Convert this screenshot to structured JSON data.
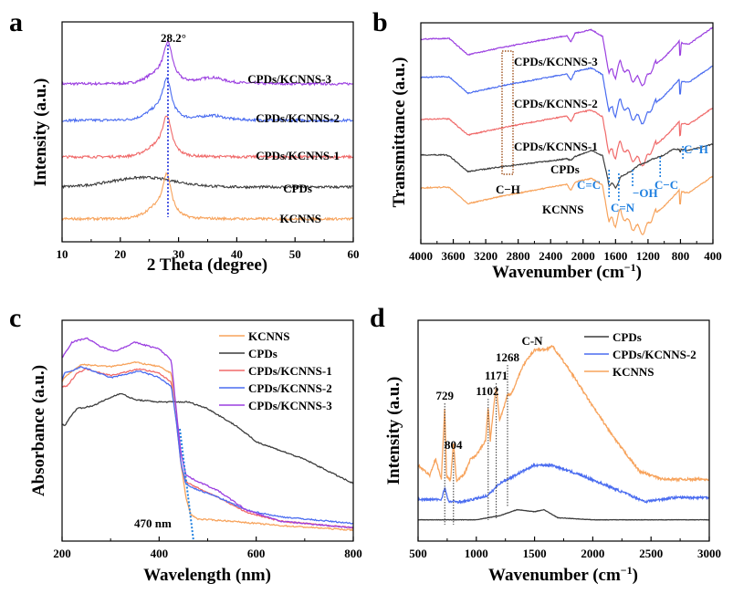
{
  "figure": {
    "colors": {
      "KCNNS": "#f7a35c",
      "CPDs": "#3c3c3c",
      "CPDs/KCNNS-1": "#f06a6a",
      "CPDs/KCNNS-2": "#4a6cf0",
      "CPDs/KCNNS-3": "#9b3fe0",
      "annotation_blue": "#1e7fe0",
      "box_brown": "#a0521e"
    }
  },
  "chart_data": [
    {
      "panel": "a",
      "type": "line",
      "title": "",
      "xlabel": "2 Theta (degree)",
      "ylabel": "Intensity (a.u.)",
      "xlim": [
        10,
        60
      ],
      "xticks": [
        10,
        20,
        30,
        40,
        50,
        60
      ],
      "yticks": [],
      "grid": false,
      "legend": "inline labels",
      "annotations": [
        {
          "text": "28.2°",
          "x": 28.2,
          "type": "vertical-dotted-line"
        }
      ],
      "series": [
        {
          "name": "CPDs/KCNNS-3",
          "label": "CPDs/KCNNS-3",
          "offset": 4,
          "peaks": [
            {
              "x": 28.2,
              "h": 0.55
            },
            {
              "x": 36,
              "h": 0.08
            }
          ],
          "broad": null
        },
        {
          "name": "CPDs/KCNNS-2",
          "label": "CPDs/KCNNS-2",
          "offset": 3,
          "peaks": [
            {
              "x": 28.0,
              "h": 0.55
            },
            {
              "x": 36,
              "h": 0.06
            }
          ],
          "broad": null
        },
        {
          "name": "CPDs/KCNNS-1",
          "label": "CPDs/KCNNS-1",
          "offset": 2,
          "peaks": [
            {
              "x": 28.0,
              "h": 0.55
            }
          ],
          "broad": null
        },
        {
          "name": "CPDs",
          "label": "CPDs",
          "offset": 1,
          "peaks": [],
          "broad": {
            "x": 24,
            "h": 0.15
          }
        },
        {
          "name": "KCNNS",
          "label": "KCNNS",
          "offset": 0,
          "peaks": [
            {
              "x": 28.0,
              "h": 0.6
            }
          ],
          "broad": null
        }
      ]
    },
    {
      "panel": "b",
      "type": "line",
      "title": "",
      "xlabel": "Wavenumber (cm⁻¹)",
      "ylabel": "Transmittance (a.u.)",
      "xlim": [
        4000,
        400
      ],
      "xticks": [
        4000,
        3600,
        3200,
        2800,
        2400,
        2000,
        1600,
        1200,
        800,
        400
      ],
      "yticks": [],
      "grid": false,
      "legend": "inline labels",
      "annotations": [
        {
          "text": "C–H",
          "x": 2930,
          "style": "black",
          "box": [
            3000,
            2870
          ]
        },
        {
          "text": "C=C",
          "x": 1680,
          "style": "blue"
        },
        {
          "text": "C=N",
          "x": 1560,
          "style": "blue"
        },
        {
          "text": "–OH",
          "x": 1390,
          "style": "blue"
        },
        {
          "text": "C–C",
          "x": 1050,
          "style": "blue"
        },
        {
          "text": "C–H",
          "x": 770,
          "style": "blue"
        }
      ],
      "series": [
        {
          "name": "CPDs/KCNNS-3",
          "label": "CPDs/KCNNS-3",
          "offset": 4
        },
        {
          "name": "CPDs/KCNNS-2",
          "label": "CPDs/KCNNS-2",
          "offset": 3
        },
        {
          "name": "CPDs/KCNNS-1",
          "label": "CPDs/KCNNS-1",
          "offset": 2
        },
        {
          "name": "CPDs",
          "label": "CPDs",
          "offset": 1
        },
        {
          "name": "KCNNS",
          "label": "KCNNS",
          "offset": 0
        }
      ]
    },
    {
      "panel": "c",
      "type": "line",
      "title": "",
      "xlabel": "Wavelength (nm)",
      "ylabel": "Absorbance (a.u.)",
      "xlim": [
        200,
        800
      ],
      "ylim": [
        0,
        1
      ],
      "xticks": [
        200,
        400,
        600,
        800
      ],
      "yticks": [],
      "grid": false,
      "legend": "top-right",
      "annotations": [
        {
          "text": "470 nm",
          "x": 470,
          "type": "tangent-dotted-line"
        }
      ],
      "series": [
        {
          "name": "KCNNS",
          "x": [
            200,
            205,
            215,
            240,
            300,
            350,
            400,
            425,
            435,
            445,
            455,
            465,
            480,
            550,
            650,
            800
          ],
          "y": [
            0.72,
            0.74,
            0.76,
            0.8,
            0.79,
            0.81,
            0.79,
            0.76,
            0.6,
            0.35,
            0.2,
            0.12,
            0.1,
            0.09,
            0.07,
            0.05
          ]
        },
        {
          "name": "CPDs",
          "x": [
            200,
            205,
            210,
            230,
            260,
            300,
            320,
            350,
            400,
            460,
            500,
            560,
            600,
            700,
            800
          ],
          "y": [
            0.53,
            0.52,
            0.54,
            0.6,
            0.61,
            0.65,
            0.67,
            0.64,
            0.63,
            0.63,
            0.6,
            0.52,
            0.45,
            0.37,
            0.26
          ]
        },
        {
          "name": "CPDs/KCNNS-1",
          "x": [
            200,
            210,
            230,
            250,
            300,
            360,
            400,
            425,
            435,
            445,
            455,
            470,
            520,
            580,
            650,
            800
          ],
          "y": [
            0.7,
            0.7,
            0.76,
            0.78,
            0.75,
            0.78,
            0.76,
            0.72,
            0.55,
            0.35,
            0.27,
            0.25,
            0.2,
            0.13,
            0.09,
            0.06
          ]
        },
        {
          "name": "CPDs/KCNNS-2",
          "x": [
            200,
            205,
            220,
            240,
            300,
            360,
            400,
            425,
            435,
            445,
            455,
            470,
            520,
            580,
            650,
            800
          ],
          "y": [
            0.73,
            0.76,
            0.77,
            0.79,
            0.74,
            0.77,
            0.74,
            0.7,
            0.55,
            0.35,
            0.26,
            0.24,
            0.2,
            0.14,
            0.11,
            0.08
          ]
        },
        {
          "name": "CPDs/KCNNS-3",
          "x": [
            200,
            220,
            250,
            280,
            310,
            350,
            400,
            425,
            435,
            445,
            455,
            470,
            520,
            580,
            650,
            800
          ],
          "y": [
            0.83,
            0.9,
            0.92,
            0.88,
            0.86,
            0.9,
            0.87,
            0.82,
            0.6,
            0.4,
            0.3,
            0.28,
            0.23,
            0.14,
            0.09,
            0.06
          ]
        }
      ]
    },
    {
      "panel": "d",
      "type": "line",
      "title": "",
      "xlabel": "Wavenumber (cm⁻¹)",
      "ylabel": "Intensity (a.u.)",
      "xlim": [
        500,
        3000
      ],
      "ylim": [
        0,
        1
      ],
      "xticks": [
        500,
        1000,
        1500,
        2000,
        2500,
        3000
      ],
      "yticks": [],
      "grid": false,
      "legend": "top-right",
      "annotations": [
        {
          "text": "729",
          "x": 729
        },
        {
          "text": "804",
          "x": 804
        },
        {
          "text": "1102",
          "x": 1102
        },
        {
          "text": "1171",
          "x": 1171
        },
        {
          "text": "1268",
          "x": 1268
        },
        {
          "text": "C-N",
          "x": 1560
        }
      ],
      "series": [
        {
          "name": "CPDs",
          "x": [
            500,
            1000,
            1200,
            1350,
            1500,
            1580,
            1700,
            2000,
            3000
          ],
          "y": [
            0.06,
            0.06,
            0.08,
            0.11,
            0.1,
            0.11,
            0.07,
            0.06,
            0.06
          ]
        },
        {
          "name": "CPDs/KCNNS-2",
          "x": [
            500,
            700,
            729,
            760,
            900,
            1100,
            1200,
            1400,
            1500,
            1650,
            1900,
            2200,
            2450,
            2700,
            3000
          ],
          "y": [
            0.16,
            0.16,
            0.22,
            0.15,
            0.15,
            0.18,
            0.24,
            0.3,
            0.33,
            0.33,
            0.28,
            0.21,
            0.15,
            0.17,
            0.17
          ]
        },
        {
          "name": "KCNNS",
          "x": [
            500,
            600,
            650,
            700,
            729,
            745,
            780,
            804,
            830,
            900,
            950,
            1000,
            1080,
            1102,
            1120,
            1150,
            1171,
            1200,
            1240,
            1268,
            1300,
            1400,
            1500,
            1600,
            1650,
            1800,
            2000,
            2200,
            2400,
            2600,
            2800,
            3000
          ],
          "y": [
            0.33,
            0.28,
            0.36,
            0.26,
            0.62,
            0.27,
            0.26,
            0.44,
            0.25,
            0.29,
            0.36,
            0.38,
            0.45,
            0.62,
            0.45,
            0.62,
            0.72,
            0.55,
            0.62,
            0.68,
            0.68,
            0.82,
            0.9,
            0.9,
            0.92,
            0.8,
            0.62,
            0.45,
            0.3,
            0.26,
            0.26,
            0.26
          ]
        }
      ]
    }
  ],
  "labels": {
    "a": {
      "letter": "a",
      "xlabel": "2 Theta (degree)",
      "ylabel": "Intensity (a.u.)",
      "peak": "28.2°",
      "ticks": [
        "10",
        "20",
        "30",
        "40",
        "50",
        "60"
      ],
      "series_labels": [
        "CPDs/KCNNS-3",
        "CPDs/KCNNS-2",
        "CPDs/KCNNS-1",
        "CPDs",
        "KCNNS"
      ]
    },
    "b": {
      "letter": "b",
      "xlabel_main": "Wavenumber (cm",
      "xlabel_sup": "−1",
      "xlabel_end": ")",
      "ylabel": "Transmittance (a.u.)",
      "ticks": [
        "4000",
        "3600",
        "3200",
        "2800",
        "2400",
        "2000",
        "1600",
        "1200",
        "800",
        "400"
      ],
      "series_labels": [
        "CPDs/KCNNS-3",
        "CPDs/KCNNS-2",
        "CPDs/KCNNS-1",
        "CPDs",
        "KCNNS"
      ],
      "bands": [
        "C−H",
        "C=C",
        "C=N",
        "−OH",
        "C−C",
        "C−H"
      ]
    },
    "c": {
      "letter": "c",
      "xlabel": "Wavelength (nm)",
      "ylabel": "Absorbance (a.u.)",
      "edge": "470 nm",
      "ticks": [
        "200",
        "400",
        "600",
        "800"
      ],
      "legend": [
        "KCNNS",
        "CPDs",
        "CPDs/KCNNS-1",
        "CPDs/KCNNS-2",
        "CPDs/KCNNS-3"
      ]
    },
    "d": {
      "letter": "d",
      "xlabel_main": "Wavenumber (cm",
      "xlabel_sup": "−1",
      "xlabel_end": ")",
      "ylabel": "Intensity (a.u.)",
      "ticks": [
        "500",
        "1000",
        "1500",
        "2000",
        "2500",
        "3000"
      ],
      "legend": [
        "CPDs",
        "CPDs/KCNNS-2",
        "KCNNS"
      ],
      "peaks": [
        "729",
        "804",
        "1102",
        "1171",
        "1268"
      ],
      "cn": "C-N"
    }
  }
}
